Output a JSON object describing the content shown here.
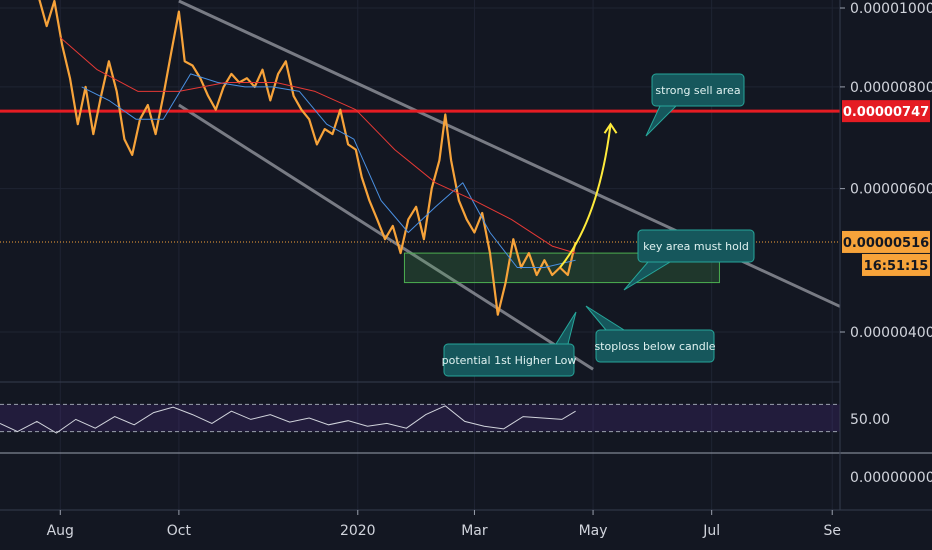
{
  "chart_data": {
    "type": "line",
    "title": "",
    "x_range": [
      "2019-07-01",
      "2020-09-05"
    ],
    "x_ticks": [
      {
        "label": "Aug",
        "date": "2019-08-01"
      },
      {
        "label": "Oct",
        "date": "2019-10-01"
      },
      {
        "label": "2020",
        "date": "2020-01-01"
      },
      {
        "label": "Mar",
        "date": "2020-03-01"
      },
      {
        "label": "May",
        "date": "2020-05-01"
      },
      {
        "label": "Jul",
        "date": "2020-07-01"
      },
      {
        "label": "Se",
        "date": "2020-09-01"
      }
    ],
    "y_ticks": [
      "0.00001000",
      "0.00000800",
      "0.00000600",
      "0.00000400"
    ],
    "y_tick_values": [
      1e-05,
      8e-06,
      6e-06,
      4e-06
    ],
    "ylim": [
      3.5e-06,
      1.07e-05
    ],
    "price_labels": {
      "resistance": "0.00000747",
      "current": "0.00000516",
      "countdown": "16:51:15"
    },
    "resistance_level": 7.47e-06,
    "current_price": 5.16e-06,
    "series": [
      {
        "color": "#f7a33a",
        "points": [
          [
            "2019-07-20",
            1.05e-05
          ],
          [
            "2019-07-25",
            9.5e-06
          ],
          [
            "2019-07-29",
            1.02e-05
          ],
          [
            "2019-08-02",
            9e-06
          ],
          [
            "2019-08-06",
            8.2e-06
          ],
          [
            "2019-08-10",
            7.2e-06
          ],
          [
            "2019-08-14",
            8e-06
          ],
          [
            "2019-08-18",
            7e-06
          ],
          [
            "2019-08-22",
            7.8e-06
          ],
          [
            "2019-08-26",
            8.6e-06
          ],
          [
            "2019-08-30",
            7.9e-06
          ],
          [
            "2019-09-03",
            6.9e-06
          ],
          [
            "2019-09-07",
            6.6e-06
          ],
          [
            "2019-09-11",
            7.3e-06
          ],
          [
            "2019-09-15",
            7.6e-06
          ],
          [
            "2019-09-19",
            7e-06
          ],
          [
            "2019-09-23",
            7.8e-06
          ],
          [
            "2019-09-27",
            8.8e-06
          ],
          [
            "2019-10-01",
            9.9e-06
          ],
          [
            "2019-10-04",
            8.6e-06
          ],
          [
            "2019-10-08",
            8.5e-06
          ],
          [
            "2019-10-12",
            8.2e-06
          ],
          [
            "2019-10-16",
            7.8e-06
          ],
          [
            "2019-10-20",
            7.5e-06
          ],
          [
            "2019-10-24",
            8e-06
          ],
          [
            "2019-10-28",
            8.3e-06
          ],
          [
            "2019-11-01",
            8.1e-06
          ],
          [
            "2019-11-05",
            8.2e-06
          ],
          [
            "2019-11-09",
            8e-06
          ],
          [
            "2019-11-13",
            8.4e-06
          ],
          [
            "2019-11-17",
            7.7e-06
          ],
          [
            "2019-11-21",
            8.3e-06
          ],
          [
            "2019-11-25",
            8.6e-06
          ],
          [
            "2019-11-29",
            7.8e-06
          ],
          [
            "2019-12-03",
            7.5e-06
          ],
          [
            "2019-12-07",
            7.3e-06
          ],
          [
            "2019-12-11",
            6.8e-06
          ],
          [
            "2019-12-15",
            7.1e-06
          ],
          [
            "2019-12-19",
            7e-06
          ],
          [
            "2019-12-23",
            7.5e-06
          ],
          [
            "2019-12-27",
            6.8e-06
          ],
          [
            "2019-12-31",
            6.7e-06
          ],
          [
            "2020-01-03",
            6.2e-06
          ],
          [
            "2020-01-07",
            5.8e-06
          ],
          [
            "2020-01-11",
            5.5e-06
          ],
          [
            "2020-01-15",
            5.2e-06
          ],
          [
            "2020-01-19",
            5.4e-06
          ],
          [
            "2020-01-23",
            5e-06
          ],
          [
            "2020-01-27",
            5.5e-06
          ],
          [
            "2020-01-31",
            5.7e-06
          ],
          [
            "2020-02-04",
            5.2e-06
          ],
          [
            "2020-02-08",
            6e-06
          ],
          [
            "2020-02-12",
            6.5e-06
          ],
          [
            "2020-02-15",
            7.4e-06
          ],
          [
            "2020-02-18",
            6.5e-06
          ],
          [
            "2020-02-22",
            5.8e-06
          ],
          [
            "2020-02-26",
            5.5e-06
          ],
          [
            "2020-03-01",
            5.3e-06
          ],
          [
            "2020-03-05",
            5.6e-06
          ],
          [
            "2020-03-09",
            5e-06
          ],
          [
            "2020-03-13",
            4.2e-06
          ],
          [
            "2020-03-17",
            4.6e-06
          ],
          [
            "2020-03-21",
            5.2e-06
          ],
          [
            "2020-03-25",
            4.8e-06
          ],
          [
            "2020-03-29",
            5e-06
          ],
          [
            "2020-04-02",
            4.7e-06
          ],
          [
            "2020-04-06",
            4.9e-06
          ],
          [
            "2020-04-10",
            4.7e-06
          ],
          [
            "2020-04-14",
            4.8e-06
          ],
          [
            "2020-04-18",
            4.7e-06
          ],
          [
            "2020-04-22",
            5.16e-06
          ]
        ]
      },
      {
        "color": "#4a90e2",
        "points": [
          [
            "2019-08-12",
            8e-06
          ],
          [
            "2019-08-26",
            7.7e-06
          ],
          [
            "2019-09-09",
            7.3e-06
          ],
          [
            "2019-09-23",
            7.3e-06
          ],
          [
            "2019-10-07",
            8.3e-06
          ],
          [
            "2019-10-21",
            8.1e-06
          ],
          [
            "2019-11-04",
            8e-06
          ],
          [
            "2019-11-18",
            8e-06
          ],
          [
            "2019-12-02",
            7.9e-06
          ],
          [
            "2019-12-16",
            7.2e-06
          ],
          [
            "2019-12-30",
            6.9e-06
          ],
          [
            "2020-01-13",
            5.8e-06
          ],
          [
            "2020-01-27",
            5.3e-06
          ],
          [
            "2020-02-10",
            5.7e-06
          ],
          [
            "2020-02-24",
            6.1e-06
          ],
          [
            "2020-03-09",
            5.3e-06
          ],
          [
            "2020-03-23",
            4.8e-06
          ],
          [
            "2020-04-06",
            4.8e-06
          ],
          [
            "2020-04-22",
            4.9e-06
          ]
        ]
      },
      {
        "color": "#e53935",
        "points": [
          [
            "2019-08-01",
            9.2e-06
          ],
          [
            "2019-08-20",
            8.4e-06
          ],
          [
            "2019-09-10",
            7.9e-06
          ],
          [
            "2019-10-01",
            7.9e-06
          ],
          [
            "2019-10-25",
            8.1e-06
          ],
          [
            "2019-11-20",
            8.1e-06
          ],
          [
            "2019-12-10",
            7.9e-06
          ],
          [
            "2019-12-31",
            7.5e-06
          ],
          [
            "2020-01-20",
            6.7e-06
          ],
          [
            "2020-02-10",
            6.1e-06
          ],
          [
            "2020-03-01",
            5.8e-06
          ],
          [
            "2020-03-20",
            5.5e-06
          ],
          [
            "2020-04-10",
            5.1e-06
          ],
          [
            "2020-04-22",
            5e-06
          ]
        ]
      }
    ],
    "channel_upper": [
      [
        "2019-10-01",
        1.02e-05
      ],
      [
        "2020-09-05",
        4.3e-06
      ]
    ],
    "channel_lower": [
      [
        "2019-10-01",
        7.6e-06
      ],
      [
        "2020-05-01",
        3.6e-06
      ]
    ],
    "key_zone": {
      "x": [
        "2020-01-25",
        "2020-07-05"
      ],
      "y": [
        4.6e-06,
        5e-06
      ]
    },
    "projection": [
      [
        "2020-04-14",
        4.8e-06
      ],
      [
        "2020-05-04",
        5.5e-06
      ],
      [
        "2020-05-10",
        7.2e-06
      ]
    ],
    "annotations": [
      {
        "text": "strong sell area"
      },
      {
        "text": "key area must hold"
      },
      {
        "text": "stoploss below candle"
      },
      {
        "text": "potential 1st Higher Low"
      }
    ],
    "rsi": {
      "tick_label": "50.00",
      "ylim": [
        0,
        100
      ],
      "upper_band": 70,
      "lower_band": 30,
      "values": [
        [
          "2019-07-01",
          42
        ],
        [
          "2019-07-10",
          30
        ],
        [
          "2019-07-20",
          45
        ],
        [
          "2019-07-30",
          28
        ],
        [
          "2019-08-09",
          48
        ],
        [
          "2019-08-19",
          35
        ],
        [
          "2019-08-29",
          52
        ],
        [
          "2019-09-08",
          40
        ],
        [
          "2019-09-18",
          58
        ],
        [
          "2019-09-28",
          66
        ],
        [
          "2019-10-08",
          55
        ],
        [
          "2019-10-18",
          42
        ],
        [
          "2019-10-28",
          60
        ],
        [
          "2019-11-07",
          48
        ],
        [
          "2019-11-17",
          55
        ],
        [
          "2019-11-27",
          44
        ],
        [
          "2019-12-07",
          50
        ],
        [
          "2019-12-17",
          40
        ],
        [
          "2019-12-27",
          46
        ],
        [
          "2020-01-06",
          38
        ],
        [
          "2020-01-16",
          42
        ],
        [
          "2020-01-26",
          35
        ],
        [
          "2020-02-05",
          55
        ],
        [
          "2020-02-15",
          68
        ],
        [
          "2020-02-25",
          45
        ],
        [
          "2020-03-06",
          38
        ],
        [
          "2020-03-16",
          34
        ],
        [
          "2020-03-26",
          52
        ],
        [
          "2020-04-05",
          50
        ],
        [
          "2020-04-15",
          48
        ],
        [
          "2020-04-22",
          60
        ]
      ]
    },
    "bottom_tick_label": "0.00000000"
  }
}
